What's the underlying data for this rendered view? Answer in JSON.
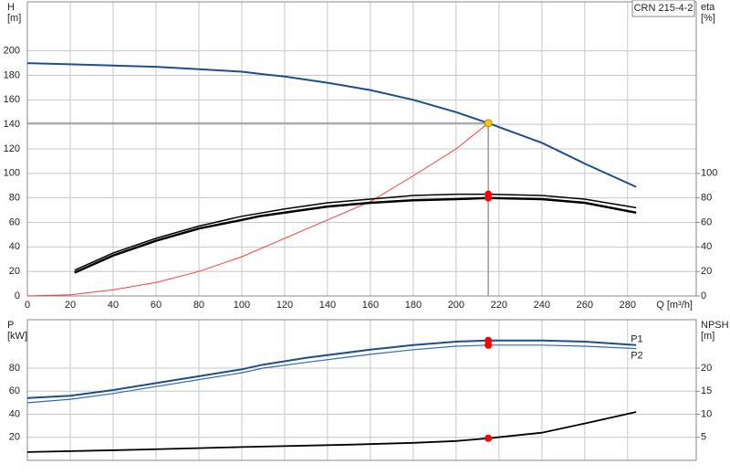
{
  "chart_data": [
    {
      "type": "line",
      "annotation": "CRN 215-4-2",
      "xlabel": "Q [m³/h]",
      "ylabel_lines": [
        "H",
        "[m]"
      ],
      "y2label_lines": [
        "eta",
        "[%]"
      ],
      "xlim": [
        0,
        312
      ],
      "ylim": [
        0,
        240
      ],
      "y2lim": [
        0,
        240
      ],
      "xticks": [
        0,
        20,
        40,
        60,
        80,
        100,
        120,
        140,
        160,
        180,
        200,
        220,
        240,
        260,
        280
      ],
      "show_xtick_labels": true,
      "yticks": [
        0,
        20,
        40,
        60,
        80,
        100,
        120,
        140,
        160,
        180,
        200
      ],
      "y2ticks": [
        0,
        20,
        40,
        60,
        80,
        100
      ],
      "grid": true,
      "series": [
        {
          "color": "#1f4e8c",
          "width": 2,
          "x": [
            0,
            20,
            40,
            60,
            80,
            100,
            110,
            120,
            140,
            160,
            180,
            200,
            215,
            240,
            260,
            284
          ],
          "values": [
            190,
            189,
            188,
            187,
            185,
            183,
            181,
            179,
            174,
            168,
            160,
            150,
            141,
            125,
            108,
            89
          ]
        },
        {
          "color": "#ff3b3b",
          "width": 1,
          "x": [
            0,
            20,
            40,
            60,
            80,
            100,
            120,
            140,
            160,
            180,
            200,
            215
          ],
          "values": [
            0,
            1,
            5,
            11,
            20,
            32,
            47,
            62,
            77,
            98,
            120,
            141
          ]
        },
        {
          "color": "#000000",
          "width": 1.5,
          "axis": "y2",
          "x": [
            22,
            40,
            60,
            80,
            100,
            120,
            140,
            160,
            180,
            200,
            215,
            240,
            260,
            284
          ],
          "values": [
            21,
            35,
            47,
            57,
            65,
            71,
            76,
            79,
            82,
            83,
            83,
            82,
            79,
            72
          ]
        },
        {
          "color": "#000000",
          "width": 2.5,
          "axis": "y2",
          "x": [
            22,
            40,
            60,
            80,
            100,
            108,
            120,
            140,
            160,
            180,
            200,
            215,
            240,
            260,
            284
          ],
          "values": [
            19,
            33,
            45,
            55,
            62,
            65,
            68,
            73,
            76,
            78,
            79,
            80,
            79,
            76,
            68
          ]
        }
      ],
      "markers": [
        {
          "x": 215,
          "y": 141,
          "color": "#f5c518",
          "crosshair": true
        },
        {
          "x": 215,
          "y": 83,
          "axis": "y2",
          "color": "#ff0000"
        },
        {
          "x": 215,
          "y": 80,
          "axis": "y2",
          "color": "#ff0000"
        }
      ]
    },
    {
      "type": "line",
      "ylabel_lines": [
        "P",
        "[kW]"
      ],
      "y2label_lines": [
        "NPSH",
        "[m]"
      ],
      "xlim": [
        0,
        312
      ],
      "ylim": [
        0,
        122
      ],
      "y2lim": [
        0,
        30.5
      ],
      "xticks": [
        0,
        20,
        40,
        60,
        80,
        100,
        120,
        140,
        160,
        180,
        200,
        220,
        240,
        260,
        280
      ],
      "show_xtick_labels": false,
      "yticks": [
        20,
        40,
        60,
        80
      ],
      "y2ticks": [
        5,
        10,
        15,
        20
      ],
      "grid": true,
      "series": [
        {
          "name": "P1",
          "color": "#1f4e8c",
          "width": 2,
          "x": [
            0,
            20,
            40,
            60,
            80,
            100,
            110,
            130,
            160,
            180,
            200,
            215,
            240,
            260,
            284
          ],
          "values": [
            54,
            56,
            61,
            67,
            73,
            79,
            83,
            89,
            96,
            100,
            103,
            104,
            104,
            103,
            100
          ]
        },
        {
          "name": "P2",
          "color": "#2f6db0",
          "width": 1.2,
          "x": [
            0,
            20,
            40,
            60,
            80,
            100,
            110,
            130,
            160,
            180,
            200,
            215,
            240,
            260,
            284
          ],
          "values": [
            50,
            53,
            58,
            64,
            70,
            76,
            80,
            85,
            92,
            96,
            99,
            100,
            100,
            99,
            97
          ]
        },
        {
          "color": "#000000",
          "width": 1.8,
          "axis": "y2",
          "x": [
            0,
            50,
            100,
            150,
            180,
            200,
            215,
            240,
            260,
            284
          ],
          "values": [
            1.8,
            2.3,
            2.9,
            3.4,
            3.8,
            4.2,
            4.8,
            6,
            8,
            10.5
          ]
        }
      ],
      "markers": [
        {
          "x": 215,
          "y": 104,
          "color": "#ff0000"
        },
        {
          "x": 215,
          "y": 100,
          "color": "#ff0000"
        },
        {
          "x": 215,
          "y": 4.8,
          "axis": "y2",
          "color": "#ff0000"
        }
      ]
    }
  ]
}
